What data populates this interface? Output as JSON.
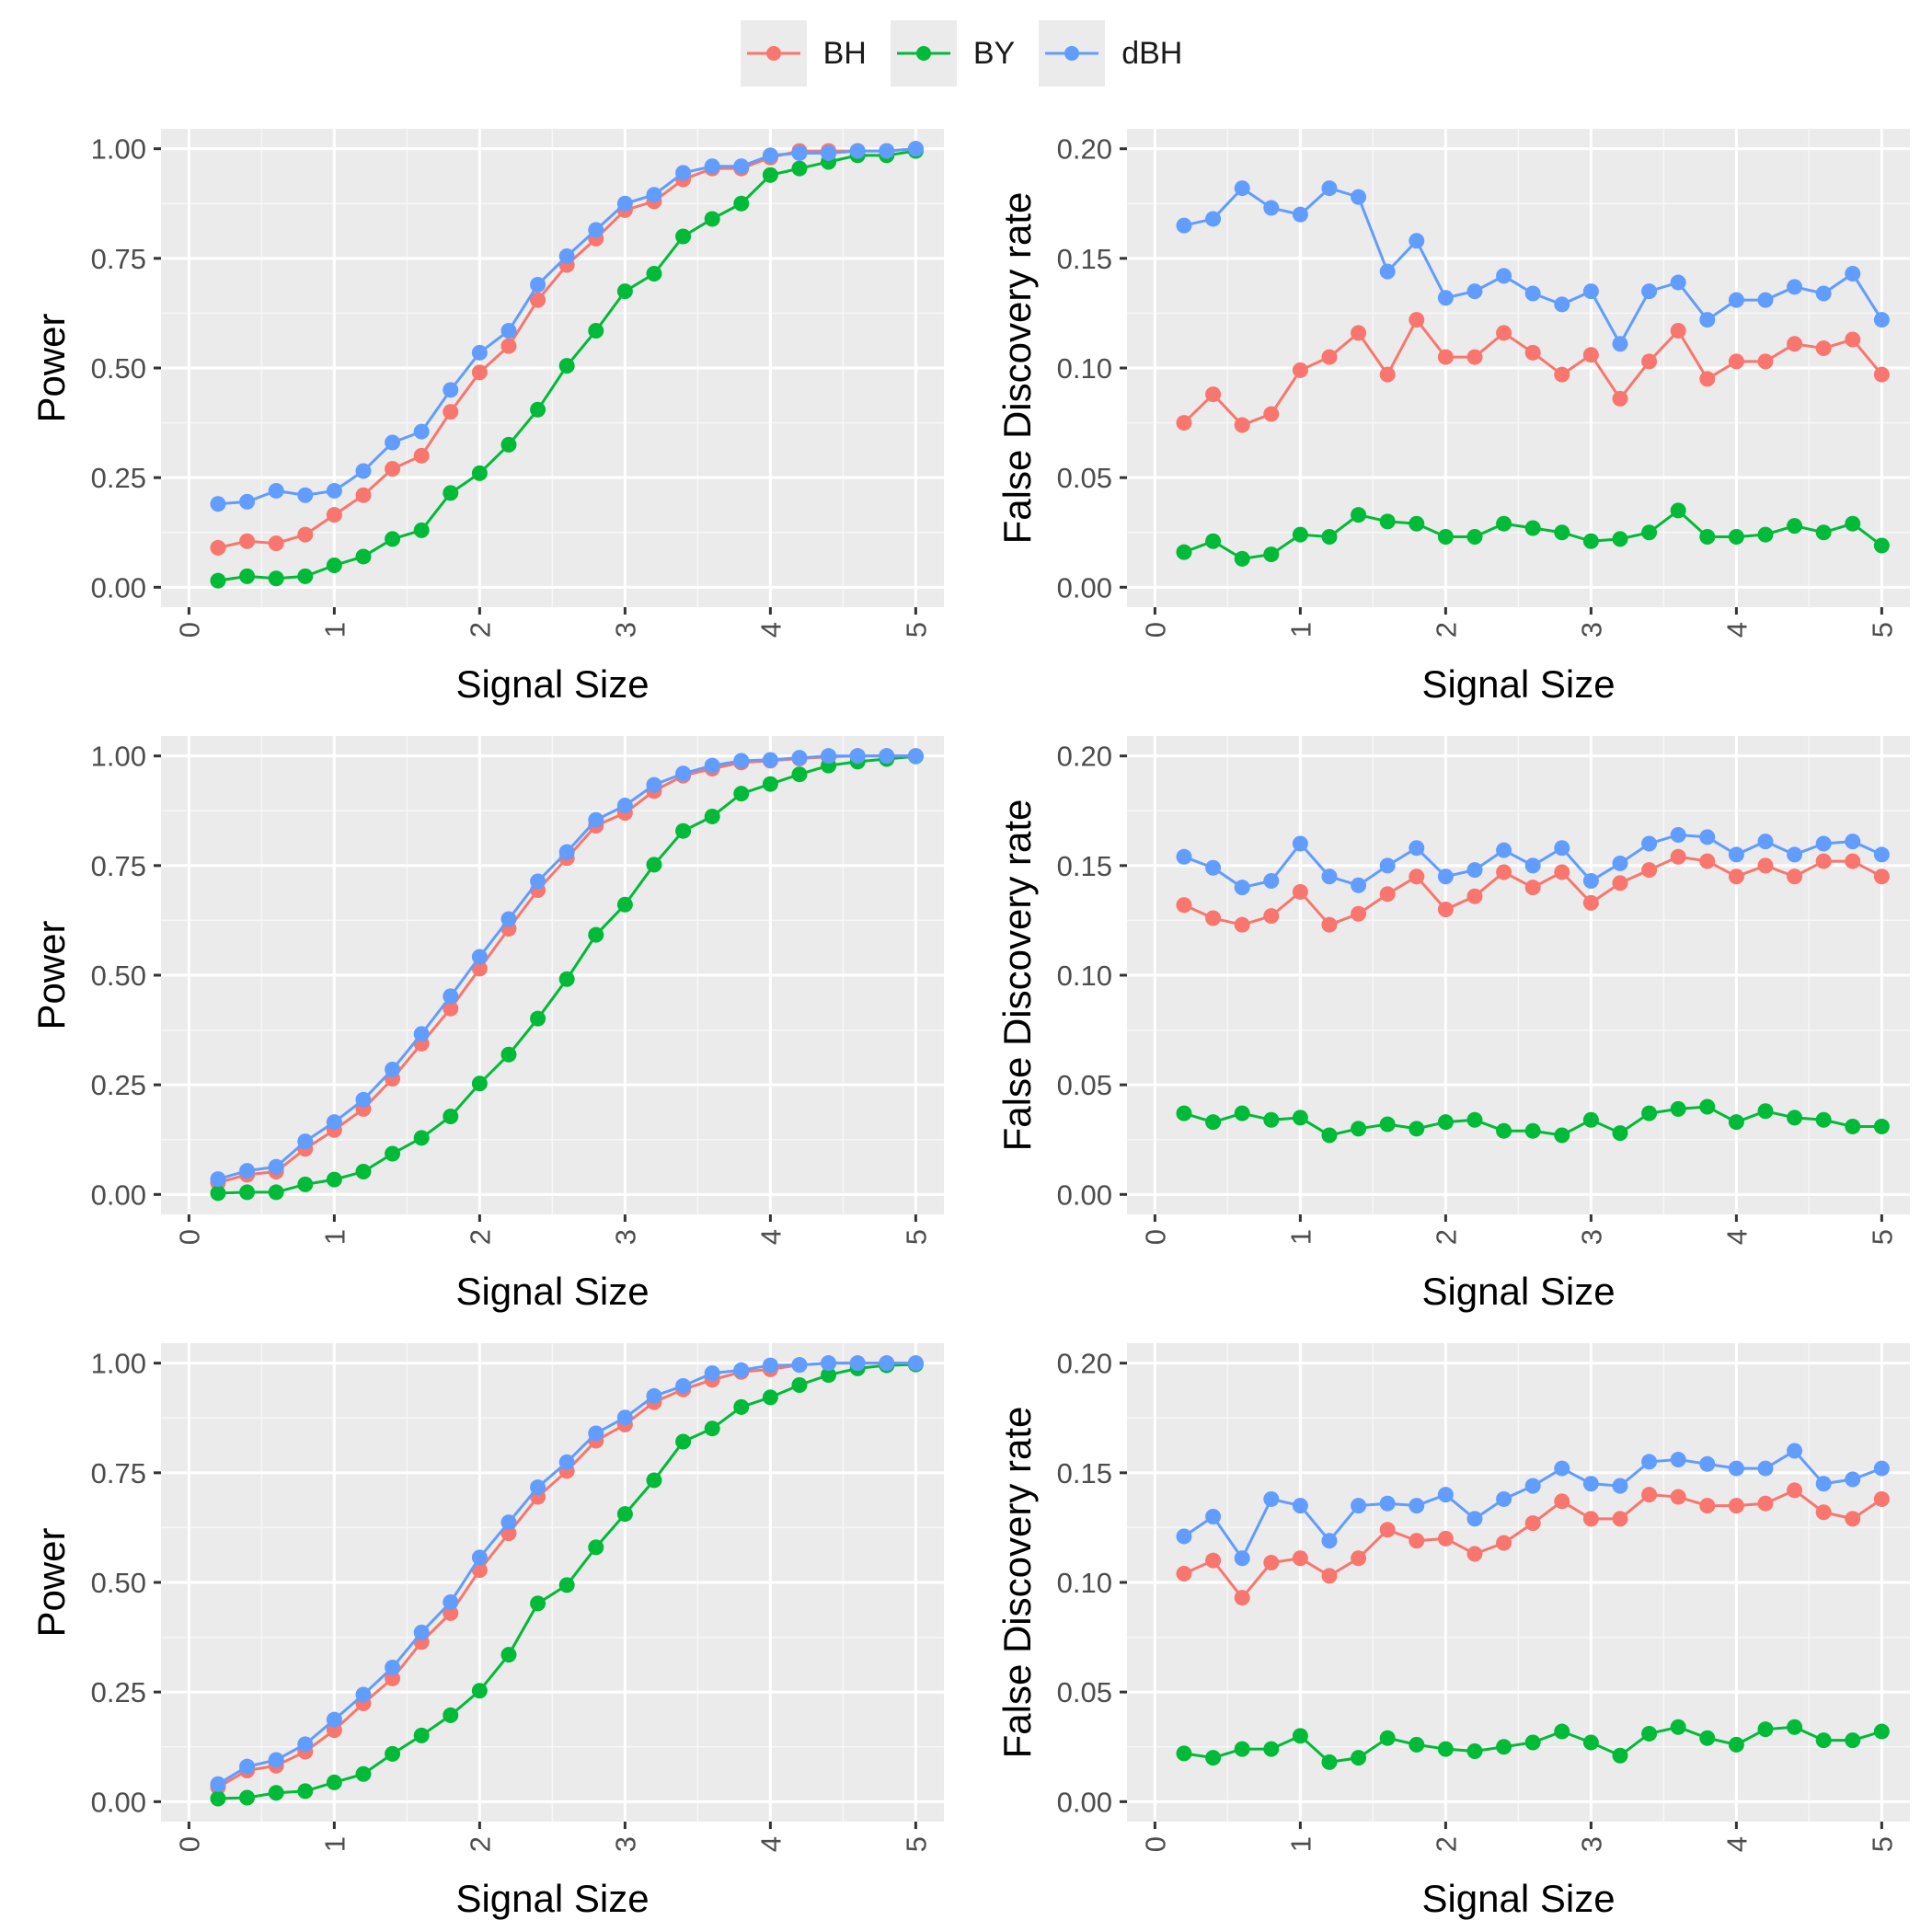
{
  "legend": {
    "items": [
      {
        "label": "BH",
        "color": "#F8766D"
      },
      {
        "label": "BY",
        "color": "#00BA38"
      },
      {
        "label": "dBH",
        "color": "#619CFF"
      }
    ]
  },
  "chart_data": [
    {
      "type": "line",
      "panel": "row1-left",
      "xlabel": "Signal Size",
      "ylabel": "Power",
      "xlim": [
        0,
        5
      ],
      "ylim": [
        0,
        1
      ],
      "xticks": [
        "0",
        "1",
        "2",
        "3",
        "4",
        "5"
      ],
      "yticks": [
        "0.00",
        "0.25",
        "0.50",
        "0.75",
        "1.00"
      ],
      "grid": true,
      "x": [
        0.2,
        0.4,
        0.6,
        0.8,
        1.0,
        1.2,
        1.4,
        1.6,
        1.8,
        2.0,
        2.2,
        2.4,
        2.6,
        2.8,
        3.0,
        3.2,
        3.4,
        3.6,
        3.8,
        4.0,
        4.2,
        4.4,
        4.6,
        4.8,
        5.0
      ],
      "series": [
        {
          "name": "BH",
          "values": [
            0.09,
            0.105,
            0.1,
            0.12,
            0.165,
            0.21,
            0.27,
            0.3,
            0.4,
            0.49,
            0.55,
            0.655,
            0.735,
            0.795,
            0.86,
            0.88,
            0.93,
            0.955,
            0.955,
            0.98,
            0.995,
            0.995,
            0.995,
            0.995,
            1.0
          ]
        },
        {
          "name": "BY",
          "values": [
            0.015,
            0.025,
            0.02,
            0.025,
            0.05,
            0.07,
            0.11,
            0.13,
            0.215,
            0.26,
            0.325,
            0.405,
            0.505,
            0.585,
            0.675,
            0.715,
            0.8,
            0.84,
            0.875,
            0.94,
            0.955,
            0.97,
            0.985,
            0.985,
            0.995
          ]
        },
        {
          "name": "dBH",
          "values": [
            0.19,
            0.195,
            0.22,
            0.21,
            0.22,
            0.265,
            0.33,
            0.355,
            0.45,
            0.535,
            0.585,
            0.69,
            0.755,
            0.815,
            0.875,
            0.895,
            0.945,
            0.96,
            0.96,
            0.985,
            0.99,
            0.99,
            0.995,
            0.995,
            1.0
          ]
        }
      ]
    },
    {
      "type": "line",
      "panel": "row1-right",
      "xlabel": "Signal Size",
      "ylabel": "False Discovery rate",
      "xlim": [
        0,
        5
      ],
      "ylim": [
        0,
        0.2
      ],
      "xticks": [
        "0",
        "1",
        "2",
        "3",
        "4",
        "5"
      ],
      "yticks": [
        "0.00",
        "0.05",
        "0.10",
        "0.15",
        "0.20"
      ],
      "grid": true,
      "x": [
        0.2,
        0.4,
        0.6,
        0.8,
        1.0,
        1.2,
        1.4,
        1.6,
        1.8,
        2.0,
        2.2,
        2.4,
        2.6,
        2.8,
        3.0,
        3.2,
        3.4,
        3.6,
        3.8,
        4.0,
        4.2,
        4.4,
        4.6,
        4.8,
        5.0
      ],
      "series": [
        {
          "name": "BH",
          "values": [
            0.075,
            0.088,
            0.074,
            0.079,
            0.099,
            0.105,
            0.116,
            0.097,
            0.122,
            0.105,
            0.105,
            0.116,
            0.107,
            0.097,
            0.106,
            0.086,
            0.103,
            0.117,
            0.095,
            0.103,
            0.103,
            0.111,
            0.109,
            0.113,
            0.097
          ]
        },
        {
          "name": "BY",
          "values": [
            0.016,
            0.021,
            0.013,
            0.015,
            0.024,
            0.023,
            0.033,
            0.03,
            0.029,
            0.023,
            0.023,
            0.029,
            0.027,
            0.025,
            0.021,
            0.022,
            0.025,
            0.035,
            0.023,
            0.023,
            0.024,
            0.028,
            0.025,
            0.029,
            0.019
          ]
        },
        {
          "name": "dBH",
          "values": [
            0.165,
            0.168,
            0.182,
            0.173,
            0.17,
            0.182,
            0.178,
            0.144,
            0.158,
            0.132,
            0.135,
            0.142,
            0.134,
            0.129,
            0.135,
            0.111,
            0.135,
            0.139,
            0.122,
            0.131,
            0.131,
            0.137,
            0.134,
            0.143,
            0.122
          ]
        }
      ]
    },
    {
      "type": "line",
      "panel": "row2-left",
      "xlabel": "Signal Size",
      "ylabel": "Power",
      "xlim": [
        0,
        5
      ],
      "ylim": [
        0,
        1
      ],
      "xticks": [
        "0",
        "1",
        "2",
        "3",
        "4",
        "5"
      ],
      "yticks": [
        "0.00",
        "0.25",
        "0.50",
        "0.75",
        "1.00"
      ],
      "grid": true,
      "x": [
        0.2,
        0.4,
        0.6,
        0.8,
        1.0,
        1.2,
        1.4,
        1.6,
        1.8,
        2.0,
        2.2,
        2.4,
        2.6,
        2.8,
        3.0,
        3.2,
        3.4,
        3.6,
        3.8,
        4.0,
        4.2,
        4.4,
        4.6,
        4.8,
        5.0
      ],
      "series": [
        {
          "name": "BH",
          "values": [
            0.027,
            0.045,
            0.052,
            0.104,
            0.147,
            0.195,
            0.264,
            0.344,
            0.424,
            0.515,
            0.606,
            0.694,
            0.767,
            0.841,
            0.87,
            0.92,
            0.955,
            0.971,
            0.985,
            0.989,
            0.994,
            0.998,
            1.0,
            1.0,
            1.0
          ]
        },
        {
          "name": "BY",
          "values": [
            0.003,
            0.005,
            0.005,
            0.023,
            0.034,
            0.052,
            0.093,
            0.129,
            0.178,
            0.253,
            0.319,
            0.401,
            0.491,
            0.592,
            0.661,
            0.752,
            0.829,
            0.862,
            0.914,
            0.936,
            0.958,
            0.978,
            0.987,
            0.993,
            0.999
          ]
        },
        {
          "name": "dBH",
          "values": [
            0.035,
            0.054,
            0.063,
            0.121,
            0.165,
            0.216,
            0.285,
            0.366,
            0.452,
            0.542,
            0.628,
            0.714,
            0.781,
            0.854,
            0.887,
            0.934,
            0.96,
            0.978,
            0.989,
            0.991,
            0.996,
            1.0,
            1.0,
            1.0,
            1.0
          ]
        }
      ]
    },
    {
      "type": "line",
      "panel": "row2-right",
      "xlabel": "Signal Size",
      "ylabel": "False Discovery rate",
      "xlim": [
        0,
        5
      ],
      "ylim": [
        0,
        0.2
      ],
      "xticks": [
        "0",
        "1",
        "2",
        "3",
        "4",
        "5"
      ],
      "yticks": [
        "0.00",
        "0.05",
        "0.10",
        "0.15",
        "0.20"
      ],
      "grid": true,
      "x": [
        0.2,
        0.4,
        0.6,
        0.8,
        1.0,
        1.2,
        1.4,
        1.6,
        1.8,
        2.0,
        2.2,
        2.4,
        2.6,
        2.8,
        3.0,
        3.2,
        3.4,
        3.6,
        3.8,
        4.0,
        4.2,
        4.4,
        4.6,
        4.8,
        5.0
      ],
      "series": [
        {
          "name": "BH",
          "values": [
            0.132,
            0.126,
            0.123,
            0.127,
            0.138,
            0.123,
            0.128,
            0.137,
            0.145,
            0.13,
            0.136,
            0.147,
            0.14,
            0.147,
            0.133,
            0.142,
            0.148,
            0.154,
            0.152,
            0.145,
            0.15,
            0.145,
            0.152,
            0.152,
            0.145
          ]
        },
        {
          "name": "BY",
          "values": [
            0.037,
            0.033,
            0.037,
            0.034,
            0.035,
            0.027,
            0.03,
            0.032,
            0.03,
            0.033,
            0.034,
            0.029,
            0.029,
            0.027,
            0.034,
            0.028,
            0.037,
            0.039,
            0.04,
            0.033,
            0.038,
            0.035,
            0.034,
            0.031,
            0.031
          ]
        },
        {
          "name": "dBH",
          "values": [
            0.154,
            0.149,
            0.14,
            0.143,
            0.16,
            0.145,
            0.141,
            0.15,
            0.158,
            0.145,
            0.148,
            0.157,
            0.15,
            0.158,
            0.143,
            0.151,
            0.16,
            0.164,
            0.163,
            0.155,
            0.161,
            0.155,
            0.16,
            0.161,
            0.155
          ]
        }
      ]
    },
    {
      "type": "line",
      "panel": "row3-left",
      "xlabel": "Signal Size",
      "ylabel": "Power",
      "xlim": [
        0,
        5
      ],
      "ylim": [
        0,
        1
      ],
      "xticks": [
        "0",
        "1",
        "2",
        "3",
        "4",
        "5"
      ],
      "yticks": [
        "0.00",
        "0.25",
        "0.50",
        "0.75",
        "1.00"
      ],
      "grid": true,
      "x": [
        0.2,
        0.4,
        0.6,
        0.8,
        1.0,
        1.2,
        1.4,
        1.6,
        1.8,
        2.0,
        2.2,
        2.4,
        2.6,
        2.8,
        3.0,
        3.2,
        3.4,
        3.6,
        3.8,
        4.0,
        4.2,
        4.4,
        4.6,
        4.8,
        5.0
      ],
      "series": [
        {
          "name": "BH",
          "values": [
            0.033,
            0.071,
            0.082,
            0.114,
            0.163,
            0.224,
            0.281,
            0.364,
            0.43,
            0.528,
            0.612,
            0.695,
            0.754,
            0.823,
            0.86,
            0.911,
            0.94,
            0.962,
            0.98,
            0.986,
            0.996,
            1.0,
            1.0,
            1.0,
            1.0
          ]
        },
        {
          "name": "BY",
          "values": [
            0.007,
            0.009,
            0.02,
            0.024,
            0.044,
            0.063,
            0.109,
            0.151,
            0.197,
            0.253,
            0.335,
            0.452,
            0.494,
            0.58,
            0.656,
            0.733,
            0.821,
            0.851,
            0.9,
            0.922,
            0.95,
            0.973,
            0.988,
            0.995,
            0.997
          ]
        },
        {
          "name": "dBH",
          "values": [
            0.04,
            0.08,
            0.095,
            0.131,
            0.187,
            0.244,
            0.306,
            0.386,
            0.455,
            0.557,
            0.637,
            0.717,
            0.774,
            0.84,
            0.876,
            0.925,
            0.948,
            0.977,
            0.984,
            0.995,
            0.996,
            1.0,
            1.0,
            1.0,
            1.0
          ]
        }
      ]
    },
    {
      "type": "line",
      "panel": "row3-right",
      "xlabel": "Signal Size",
      "ylabel": "False Discovery rate",
      "xlim": [
        0,
        5
      ],
      "ylim": [
        0,
        0.2
      ],
      "xticks": [
        "0",
        "1",
        "2",
        "3",
        "4",
        "5"
      ],
      "yticks": [
        "0.00",
        "0.05",
        "0.10",
        "0.15",
        "0.20"
      ],
      "grid": true,
      "x": [
        0.2,
        0.4,
        0.6,
        0.8,
        1.0,
        1.2,
        1.4,
        1.6,
        1.8,
        2.0,
        2.2,
        2.4,
        2.6,
        2.8,
        3.0,
        3.2,
        3.4,
        3.6,
        3.8,
        4.0,
        4.2,
        4.4,
        4.6,
        4.8,
        5.0
      ],
      "series": [
        {
          "name": "BH",
          "values": [
            0.104,
            0.11,
            0.093,
            0.109,
            0.111,
            0.103,
            0.111,
            0.124,
            0.119,
            0.12,
            0.113,
            0.118,
            0.127,
            0.137,
            0.129,
            0.129,
            0.14,
            0.139,
            0.135,
            0.135,
            0.136,
            0.142,
            0.132,
            0.129,
            0.138
          ]
        },
        {
          "name": "BY",
          "values": [
            0.022,
            0.02,
            0.024,
            0.024,
            0.03,
            0.018,
            0.02,
            0.029,
            0.026,
            0.024,
            0.023,
            0.025,
            0.027,
            0.032,
            0.027,
            0.021,
            0.031,
            0.034,
            0.029,
            0.026,
            0.033,
            0.034,
            0.028,
            0.028,
            0.032
          ]
        },
        {
          "name": "dBH",
          "values": [
            0.121,
            0.13,
            0.111,
            0.138,
            0.135,
            0.119,
            0.135,
            0.136,
            0.135,
            0.14,
            0.129,
            0.138,
            0.144,
            0.152,
            0.145,
            0.144,
            0.155,
            0.156,
            0.154,
            0.152,
            0.152,
            0.16,
            0.145,
            0.147,
            0.152
          ]
        }
      ]
    }
  ]
}
